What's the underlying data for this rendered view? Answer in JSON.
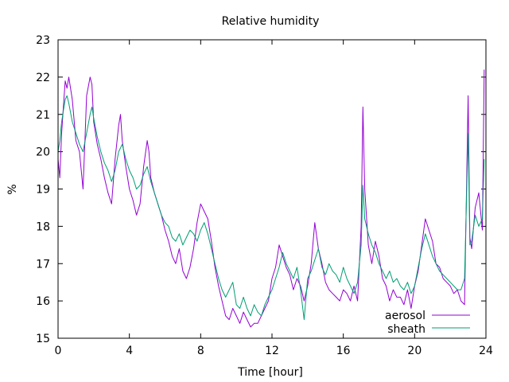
{
  "chart_data": {
    "type": "line",
    "title": "Relative humidity",
    "xlabel": "Time [hour]",
    "ylabel": "%",
    "xlim": [
      0,
      24
    ],
    "ylim": [
      15,
      23
    ],
    "xticks": [
      0,
      4,
      8,
      12,
      16,
      20,
      24
    ],
    "yticks": [
      15,
      16,
      17,
      18,
      19,
      20,
      21,
      22,
      23
    ],
    "grid": false,
    "legend_position": "bottom-right",
    "series": [
      {
        "name": "aerosol",
        "color": "#9400d3",
        "x": [
          0,
          0.1,
          0.2,
          0.3,
          0.4,
          0.5,
          0.6,
          0.8,
          1.0,
          1.2,
          1.4,
          1.5,
          1.6,
          1.8,
          1.9,
          2.0,
          2.2,
          2.4,
          2.6,
          2.8,
          3.0,
          3.2,
          3.4,
          3.5,
          3.6,
          3.8,
          4.0,
          4.2,
          4.4,
          4.6,
          4.8,
          5.0,
          5.1,
          5.2,
          5.4,
          5.6,
          5.8,
          6.0,
          6.2,
          6.4,
          6.6,
          6.8,
          7.0,
          7.2,
          7.4,
          7.6,
          7.8,
          8.0,
          8.2,
          8.4,
          8.6,
          8.8,
          9.0,
          9.2,
          9.4,
          9.6,
          9.8,
          10.0,
          10.2,
          10.4,
          10.6,
          10.8,
          11.0,
          11.2,
          11.4,
          11.6,
          11.8,
          12.0,
          12.2,
          12.4,
          12.6,
          12.8,
          13.0,
          13.2,
          13.4,
          13.6,
          13.8,
          14.0,
          14.2,
          14.4,
          14.6,
          14.8,
          15.0,
          15.2,
          15.4,
          15.6,
          15.8,
          16.0,
          16.2,
          16.4,
          16.6,
          16.8,
          17.0,
          17.1,
          17.2,
          17.4,
          17.6,
          17.8,
          18.0,
          18.2,
          18.4,
          18.6,
          18.8,
          19.0,
          19.2,
          19.4,
          19.6,
          19.8,
          20.0,
          20.2,
          20.4,
          20.6,
          20.8,
          21.0,
          21.2,
          21.4,
          21.6,
          21.8,
          22.0,
          22.2,
          22.4,
          22.6,
          22.8,
          23.0,
          23.1,
          23.2,
          23.4,
          23.6,
          23.8,
          23.9
        ],
        "y": [
          19.8,
          19.3,
          20.5,
          21.2,
          21.9,
          21.7,
          22.0,
          21.4,
          20.3,
          20.0,
          19.0,
          20.2,
          21.5,
          22.0,
          21.8,
          20.8,
          20.2,
          19.8,
          19.3,
          18.9,
          18.6,
          19.8,
          20.7,
          21.0,
          20.3,
          19.6,
          19.0,
          18.7,
          18.3,
          18.6,
          19.6,
          20.3,
          20.0,
          19.3,
          18.9,
          18.6,
          18.3,
          17.9,
          17.6,
          17.2,
          17.0,
          17.4,
          16.8,
          16.6,
          16.9,
          17.4,
          18.1,
          18.6,
          18.4,
          18.2,
          17.6,
          16.9,
          16.4,
          16.0,
          15.6,
          15.5,
          15.8,
          15.6,
          15.4,
          15.7,
          15.5,
          15.3,
          15.4,
          15.4,
          15.6,
          15.8,
          16.0,
          16.6,
          16.9,
          17.5,
          17.2,
          16.9,
          16.7,
          16.3,
          16.6,
          16.4,
          16.0,
          16.4,
          17.0,
          18.1,
          17.4,
          17.0,
          16.5,
          16.3,
          16.2,
          16.1,
          16.0,
          16.3,
          16.2,
          16.0,
          16.4,
          16.0,
          18.0,
          21.2,
          19.0,
          17.5,
          17.0,
          17.6,
          17.2,
          16.6,
          16.4,
          16.0,
          16.3,
          16.1,
          16.1,
          15.9,
          16.3,
          15.8,
          16.4,
          16.8,
          17.5,
          18.2,
          17.9,
          17.6,
          17.0,
          16.9,
          16.6,
          16.5,
          16.4,
          16.2,
          16.3,
          16.0,
          15.9,
          21.5,
          17.7,
          17.4,
          18.5,
          18.9,
          17.9,
          22.2
        ]
      },
      {
        "name": "sheath",
        "color": "#009e73",
        "x": [
          0,
          0.1,
          0.2,
          0.3,
          0.4,
          0.5,
          0.6,
          0.8,
          1.0,
          1.2,
          1.4,
          1.6,
          1.8,
          1.9,
          2.0,
          2.2,
          2.4,
          2.6,
          2.8,
          3.0,
          3.2,
          3.4,
          3.6,
          3.8,
          4.0,
          4.2,
          4.4,
          4.6,
          4.8,
          5.0,
          5.2,
          5.4,
          5.6,
          5.8,
          6.0,
          6.2,
          6.4,
          6.6,
          6.8,
          7.0,
          7.2,
          7.4,
          7.6,
          7.8,
          8.0,
          8.2,
          8.4,
          8.6,
          8.8,
          9.0,
          9.2,
          9.4,
          9.6,
          9.8,
          10.0,
          10.2,
          10.4,
          10.6,
          10.8,
          11.0,
          11.2,
          11.4,
          11.6,
          11.8,
          12.0,
          12.2,
          12.4,
          12.6,
          12.8,
          13.0,
          13.2,
          13.4,
          13.6,
          13.8,
          14.0,
          14.2,
          14.4,
          14.6,
          14.8,
          15.0,
          15.2,
          15.4,
          15.6,
          15.8,
          16.0,
          16.2,
          16.4,
          16.6,
          16.8,
          17.0,
          17.1,
          17.2,
          17.4,
          17.6,
          17.8,
          18.0,
          18.2,
          18.4,
          18.6,
          18.8,
          19.0,
          19.2,
          19.4,
          19.6,
          19.8,
          20.0,
          20.2,
          20.4,
          20.6,
          20.8,
          21.0,
          21.2,
          21.4,
          21.6,
          21.8,
          22.0,
          22.2,
          22.4,
          22.6,
          22.8,
          23.0,
          23.1,
          23.2,
          23.4,
          23.6,
          23.8,
          23.9
        ],
        "y": [
          20.0,
          20.3,
          20.8,
          21.1,
          21.4,
          21.5,
          21.3,
          20.8,
          20.5,
          20.2,
          20.0,
          20.5,
          21.0,
          21.2,
          20.9,
          20.4,
          20.0,
          19.7,
          19.5,
          19.2,
          19.5,
          20.0,
          20.2,
          19.8,
          19.5,
          19.3,
          19.0,
          19.1,
          19.4,
          19.6,
          19.2,
          18.9,
          18.6,
          18.3,
          18.1,
          18.0,
          17.7,
          17.6,
          17.8,
          17.5,
          17.7,
          17.9,
          17.8,
          17.6,
          17.9,
          18.1,
          17.8,
          17.4,
          17.0,
          16.6,
          16.3,
          16.1,
          16.3,
          16.5,
          15.9,
          15.8,
          16.1,
          15.8,
          15.6,
          15.9,
          15.7,
          15.6,
          15.9,
          16.1,
          16.3,
          16.6,
          16.9,
          17.3,
          17.0,
          16.8,
          16.6,
          16.9,
          16.3,
          15.5,
          16.6,
          16.8,
          17.1,
          17.4,
          16.9,
          16.7,
          17.0,
          16.8,
          16.7,
          16.5,
          16.9,
          16.6,
          16.4,
          16.2,
          16.5,
          17.5,
          19.1,
          18.2,
          17.8,
          17.5,
          17.3,
          17.0,
          16.8,
          16.6,
          16.8,
          16.5,
          16.6,
          16.4,
          16.3,
          16.5,
          16.2,
          16.4,
          16.9,
          17.4,
          17.8,
          17.5,
          17.2,
          17.0,
          16.8,
          16.7,
          16.6,
          16.5,
          16.4,
          16.3,
          16.3,
          16.6,
          20.5,
          17.5,
          17.6,
          18.3,
          18.0,
          18.2,
          19.8
        ]
      }
    ]
  }
}
